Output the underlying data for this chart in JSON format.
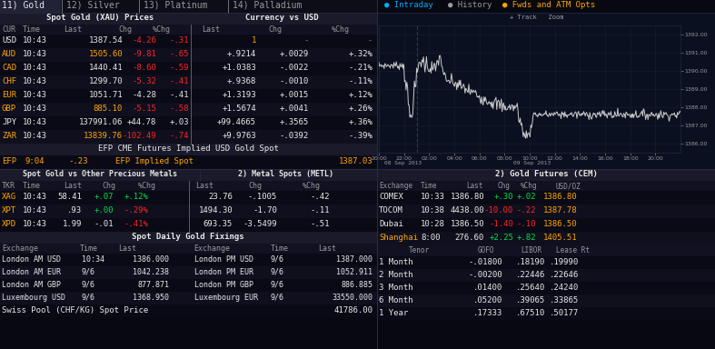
{
  "bg_color": "#080810",
  "dark_blue": "#0a0f1a",
  "orange": "#ffa500",
  "white": "#e8e8e8",
  "red": "#ff2222",
  "green": "#00dd44",
  "cyan": "#00aaff",
  "gray": "#777777",
  "light_gray": "#999999",
  "hdr_bg": "#1a1a2a",
  "col_hdr_bg": "#111122",
  "row_even": "#0a0a16",
  "row_odd": "#0f0f1e",
  "sep": "#2a2a44",
  "tab_active_bg": "#222236",
  "tab_inactive_bg": "#0d0d18",
  "chart_bg": "#0a1020",
  "tabs": [
    "11) Gold",
    "12) Silver",
    "13) Platinum",
    "14) Palladium"
  ],
  "spot_header": "Spot Gold (XAU) Prices",
  "currency_header": "Currency vs USD",
  "spot_rows": [
    {
      "cur": "USD",
      "time": "10:43",
      "last": "1387.54",
      "chg": "-4.26",
      "pchg": "-.31",
      "clast": "1",
      "cchg": "-",
      "cpchg": "-",
      "cur_c": "white",
      "last_c": "white",
      "chg_c": "red",
      "pchg_c": "red",
      "clast_c": "orange",
      "cchg_c": "gray",
      "cpchg_c": "gray"
    },
    {
      "cur": "AUD",
      "time": "10:43",
      "last": "1505.60",
      "chg": "-9.81",
      "pchg": "-.65",
      "clast": "+.9214",
      "cchg": "+.0029",
      "cpchg": "+.32%",
      "cur_c": "orange",
      "last_c": "orange",
      "chg_c": "red",
      "pchg_c": "red",
      "clast_c": "white",
      "cchg_c": "white",
      "cpchg_c": "white"
    },
    {
      "cur": "CAD",
      "time": "10:43",
      "last": "1440.41",
      "chg": "-8.60",
      "pchg": "-.59",
      "clast": "+1.0383",
      "cchg": "-.0022",
      "cpchg": "-.21%",
      "cur_c": "orange",
      "last_c": "white",
      "chg_c": "red",
      "pchg_c": "red",
      "clast_c": "white",
      "cchg_c": "white",
      "cpchg_c": "white"
    },
    {
      "cur": "CHF",
      "time": "10:43",
      "last": "1299.70",
      "chg": "-5.32",
      "pchg": "-.41",
      "clast": "+.9368",
      "cchg": "-.0010",
      "cpchg": "-.11%",
      "cur_c": "orange",
      "last_c": "white",
      "chg_c": "red",
      "pchg_c": "red",
      "clast_c": "white",
      "cchg_c": "white",
      "cpchg_c": "white"
    },
    {
      "cur": "EUR",
      "time": "10:43",
      "last": "1051.71",
      "chg": "-4.28",
      "pchg": "-.41",
      "clast": "+1.3193",
      "cchg": "+.0015",
      "cpchg": "+.12%",
      "cur_c": "orange",
      "last_c": "white",
      "chg_c": "white",
      "pchg_c": "white",
      "clast_c": "white",
      "cchg_c": "white",
      "cpchg_c": "white"
    },
    {
      "cur": "GBP",
      "time": "10:43",
      "last": "885.10",
      "chg": "-5.15",
      "pchg": "-.58",
      "clast": "+1.5674",
      "cchg": "+.0041",
      "cpchg": "+.26%",
      "cur_c": "orange",
      "last_c": "orange",
      "chg_c": "red",
      "pchg_c": "red",
      "clast_c": "white",
      "cchg_c": "white",
      "cpchg_c": "white"
    },
    {
      "cur": "JPY",
      "time": "10:43",
      "last": "137991.06",
      "chg": "+44.78",
      "pchg": "+.03",
      "clast": "+99.4665",
      "cchg": "+.3565",
      "cpchg": "+.36%",
      "cur_c": "white",
      "last_c": "white",
      "chg_c": "white",
      "pchg_c": "white",
      "clast_c": "white",
      "cchg_c": "white",
      "cpchg_c": "white"
    },
    {
      "cur": "ZAR",
      "time": "10:43",
      "last": "13839.76",
      "chg": "-102.49",
      "pchg": "-.74",
      "clast": "+9.9763",
      "cchg": "-.0392",
      "cpchg": "-.39%",
      "cur_c": "orange",
      "last_c": "orange",
      "chg_c": "red",
      "pchg_c": "red",
      "clast_c": "white",
      "cchg_c": "white",
      "cpchg_c": "white"
    }
  ],
  "efp_header": "EFP CME Futures Implied USD Gold Spot",
  "efp_label": "EFP",
  "efp_time": "9:04",
  "efp_chg": "-.23",
  "efp_implied": "EFP Implied Spot",
  "efp_value": "1387.03",
  "metals_header": "Spot Gold vs Other Precious Metals",
  "metl_header": "2) Metal Spots (METL)",
  "metals_rows": [
    {
      "tkr": "XAG",
      "time": "10:43",
      "last": "58.41",
      "chg": "+.07",
      "pchg": "+.12%",
      "mlast": "23.76",
      "mchg": "-.1005",
      "mpchg": "-.42",
      "tkr_c": "orange",
      "chg_c": "green",
      "pchg_c": "green"
    },
    {
      "tkr": "XPT",
      "time": "10:43",
      "last": ".93",
      "chg": "+.00",
      "pchg": "-.29%",
      "mlast": "1494.30",
      "mchg": "-1.70",
      "mpchg": "-.11",
      "tkr_c": "orange",
      "chg_c": "green",
      "pchg_c": "red"
    },
    {
      "tkr": "XPD",
      "time": "10:43",
      "last": "1.99",
      "chg": "-.01",
      "pchg": "-.41%",
      "mlast": "693.35",
      "mchg": "-3.5499",
      "mpchg": "-.51",
      "tkr_c": "orange",
      "chg_c": "white",
      "pchg_c": "red"
    }
  ],
  "fixings_header": "Spot Daily Gold Fixings",
  "fixings_rows": [
    {
      "ex1": "London AM USD",
      "t1": "10:34",
      "l1": "1386.000",
      "ex2": "London PM USD",
      "t2": "9/6",
      "l2": "1387.000"
    },
    {
      "ex1": "London AM EUR",
      "t1": "9/6",
      "l1": "1042.238",
      "ex2": "London PM EUR",
      "t2": "9/6",
      "l2": "1052.911"
    },
    {
      "ex1": "London AM GBP",
      "t1": "9/6",
      "l1": "877.871",
      "ex2": "London PM GBP",
      "t2": "9/6",
      "l2": "886.885"
    },
    {
      "ex1": "Luxembourg USD",
      "t1": "9/6",
      "l1": "1368.950",
      "ex2": "Luxembourg EUR",
      "t2": "9/6",
      "l2": "33550.000"
    }
  ],
  "swiss_label": "Swiss Pool (CHF/KG) Spot Price",
  "swiss_value": "41786.00",
  "futures_header": "2) Gold Futures (CEM)",
  "futures_rows": [
    {
      "ex": "COMEX",
      "time": "10:33",
      "last": "1386.80",
      "chg": "+.30",
      "pchg": "+.02",
      "usd": "1386.80",
      "ex_c": "white",
      "chg_c": "green",
      "pchg_c": "green"
    },
    {
      "ex": "TOCOM",
      "time": "10:38",
      "last": "4438.00",
      "chg": "-10.00",
      "pchg": "-.22",
      "usd": "1387.78",
      "ex_c": "white",
      "chg_c": "red",
      "pchg_c": "red"
    },
    {
      "ex": "Dubai",
      "time": "10:28",
      "last": "1386.50",
      "chg": "-1.40",
      "pchg": "-.10",
      "usd": "1386.50",
      "ex_c": "white",
      "chg_c": "red",
      "pchg_c": "red"
    },
    {
      "ex": "Shanghai",
      "time": "8:00",
      "last": "276.60",
      "chg": "+2.25",
      "pchg": "+.82",
      "usd": "1405.51",
      "ex_c": "orange",
      "chg_c": "green",
      "pchg_c": "green"
    }
  ],
  "rates_rows": [
    {
      "tenor": "1 Month",
      "gofo": "-.01800",
      "libor": ".18190",
      "lease": ".19990"
    },
    {
      "tenor": "2 Month",
      "gofo": "-.00200",
      "libor": ".22446",
      "lease": ".22646"
    },
    {
      "tenor": "3 Month",
      "gofo": ".01400",
      "libor": ".25640",
      "lease": ".24240"
    },
    {
      "tenor": "6 Month",
      "gofo": ".05200",
      "libor": ".39065",
      "lease": ".33865"
    },
    {
      "tenor": "1 Year",
      "gofo": ".17333",
      "libor": ".67510",
      "lease": ".50177"
    }
  ],
  "chart_yticks": [
    1386,
    1387,
    1388,
    1389,
    1390,
    1391,
    1392
  ],
  "chart_ytick_labels": [
    "1386.00",
    "1387.00",
    "1388.00",
    "1389.00",
    "1390.00",
    "1391.00",
    "1392.00"
  ],
  "chart_xtick_labels": [
    "20:00",
    "22:00",
    "02:00",
    "04:00",
    "06:00",
    "08:00",
    "10:00",
    "12:00",
    "14:00",
    "16:00",
    "18:00",
    "20:00"
  ],
  "chart_date1": "08 Sep 2013",
  "chart_date2": "09 Sep 2013",
  "intraday_label": "Intraday",
  "history_label": "History",
  "fwds_label": "Fwds and ATM Opts"
}
